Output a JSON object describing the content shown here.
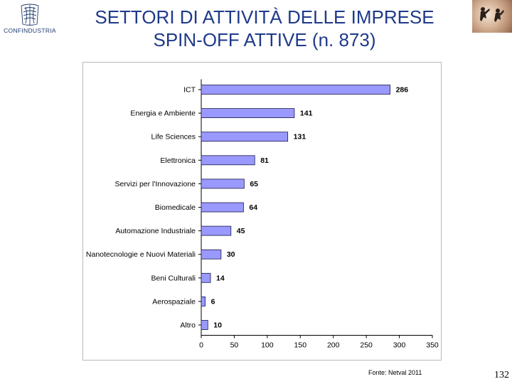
{
  "slide": {
    "logo_text": "CONFINDUSTRIA",
    "title_line1": "SETTORI DI ATTIVITÀ DELLE IMPRESE",
    "title_line2": "SPIN-OFF ATTIVE (n. 873)",
    "source": "Fonte: Netval 2011",
    "page_number": "132"
  },
  "colors": {
    "bar_fill": "#9999ff",
    "bar_stroke": "#1a1a4a",
    "title": "#1f3a8a"
  },
  "chart_data": {
    "type": "bar",
    "orientation": "horizontal",
    "categories": [
      "ICT",
      "Energia e Ambiente",
      "Life Sciences",
      "Elettronica",
      "Servizi per l'Innovazione",
      "Biomedicale",
      "Automazione Industriale",
      "Nanotecnologie e Nuovi Materiali",
      "Beni Culturali",
      "Aerospaziale",
      "Altro"
    ],
    "values": [
      286,
      141,
      131,
      81,
      65,
      64,
      45,
      30,
      14,
      6,
      10
    ],
    "data_labels": [
      "286",
      "141",
      "131",
      "81",
      "65",
      "64",
      "45",
      "30",
      "14",
      "6",
      "10"
    ],
    "xlim": [
      0,
      350
    ],
    "ticks": [
      "0",
      "50",
      "100",
      "150",
      "200",
      "250",
      "300",
      "350"
    ],
    "grid": false,
    "legend": "none",
    "title": "",
    "xlabel": "",
    "ylabel": ""
  }
}
